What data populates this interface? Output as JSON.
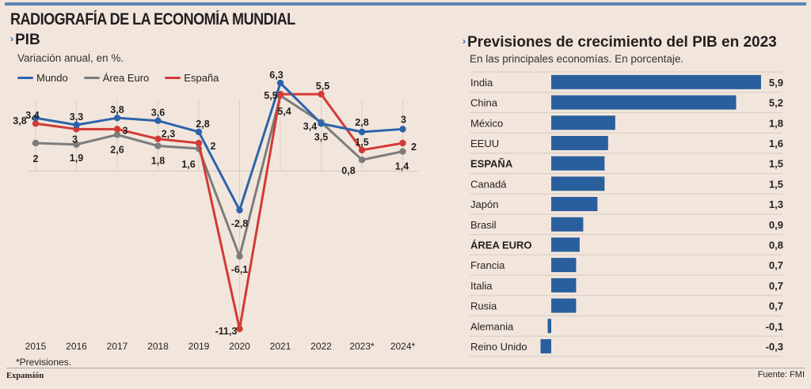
{
  "header": {
    "title": "RADIOGRAFÍA DE LA ECONOMÍA MUNDIAL"
  },
  "left_panel": {
    "title": "PIB",
    "subtitle": "Variación anual, en %.",
    "note": "*Previsiones.",
    "legend": [
      {
        "name": "Mundo",
        "color": "#2c64ab"
      },
      {
        "name": "Área Euro",
        "color": "#7c7c7c"
      },
      {
        "name": "España",
        "color": "#d33a35"
      }
    ]
  },
  "right_panel": {
    "title": "Previsiones de crecimiento del PIB en 2023",
    "subtitle": "En las principales economías. En porcentaje."
  },
  "footer": {
    "brand": "Expansión",
    "source": "Fuente: FMI"
  },
  "chart_data": [
    {
      "type": "line",
      "title": "PIB",
      "subtitle": "Variación anual, en %.",
      "xlabel": "",
      "ylabel": "",
      "x": [
        "2015",
        "2016",
        "2017",
        "2018",
        "2019",
        "2020",
        "2021",
        "2022",
        "2023*",
        "2024*"
      ],
      "ylim": [
        -11.3,
        6.3
      ],
      "grid": "vertical",
      "legend_position": "top-left",
      "series": [
        {
          "name": "Mundo",
          "color": "#2c64ab",
          "values": [
            3.8,
            3.3,
            3.8,
            3.6,
            2.8,
            -2.8,
            6.3,
            3.4,
            2.8,
            3
          ],
          "labels": [
            "3,8",
            "3,3",
            "3,8",
            "3,6",
            "2,8",
            "-2,8",
            "6,3",
            "3,4",
            "2,8",
            "3"
          ]
        },
        {
          "name": "Área Euro",
          "color": "#7c7c7c",
          "values": [
            2,
            1.9,
            2.6,
            1.8,
            1.6,
            -6.1,
            5.4,
            3.5,
            0.8,
            1.4
          ],
          "labels": [
            "2",
            "1,9",
            "2,6",
            "1,8",
            "1,6",
            "-6,1",
            "5,4",
            "3,5",
            "0,8",
            "1,4"
          ]
        },
        {
          "name": "España",
          "color": "#d33a35",
          "values": [
            3.4,
            3,
            3,
            2.3,
            2,
            -11.3,
            5.5,
            5.5,
            1.5,
            2
          ],
          "labels": [
            "3,4",
            "3",
            "3",
            "2,3",
            "2",
            "-11,3",
            "5,5",
            "5,5",
            "1,5",
            "2"
          ]
        }
      ],
      "note": "*Previsiones."
    },
    {
      "type": "bar",
      "orientation": "horizontal",
      "title": "Previsiones de crecimiento del PIB en 2023",
      "subtitle": "En las principales economías. En porcentaje.",
      "color": "#2a5f9e",
      "categories": [
        "India",
        "China",
        "México",
        "EEUU",
        "ESPAÑA",
        "Canadá",
        "Japón",
        "Brasil",
        "ÁREA EURO",
        "Francia",
        "Italia",
        "Rusia",
        "Alemania",
        "Reino Unido"
      ],
      "bold_categories": [
        "ESPAÑA",
        "ÁREA EURO"
      ],
      "values": [
        5.9,
        5.2,
        1.8,
        1.6,
        1.5,
        1.5,
        1.3,
        0.9,
        0.8,
        0.7,
        0.7,
        0.7,
        -0.1,
        -0.3
      ],
      "value_labels": [
        "5,9",
        "5,2",
        "1,8",
        "1,6",
        "1,5",
        "1,5",
        "1,3",
        "0,9",
        "0,8",
        "0,7",
        "0,7",
        "0,7",
        "-0,1",
        "-0,3"
      ],
      "xlim": [
        -0.3,
        5.9
      ],
      "source": "Fuente: FMI"
    }
  ]
}
